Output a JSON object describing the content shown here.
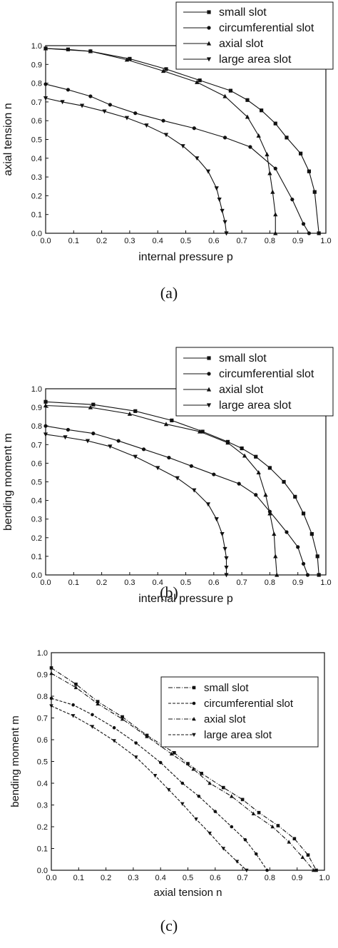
{
  "captions": [
    "(a)",
    "(b)",
    "(c)"
  ],
  "colors": {
    "ink": "#111111",
    "background": "#ffffff"
  },
  "chart_data": [
    {
      "type": "line",
      "xlabel": "internal pressure p",
      "ylabel": "axial tension n",
      "xlim": [
        0,
        1.0
      ],
      "ylim": [
        0,
        1.0
      ],
      "xticks": [
        "0.0",
        "0.1",
        "0.2",
        "0.3",
        "0.4",
        "0.5",
        "0.6",
        "0.7",
        "0.8",
        "0.9",
        "1.0"
      ],
      "yticks": [
        "0.0",
        "0.1",
        "0.2",
        "0.3",
        "0.4",
        "0.5",
        "0.6",
        "0.7",
        "0.8",
        "0.9",
        "1.0"
      ],
      "grid": false,
      "legend_position": "top-right",
      "series": [
        {
          "name": "small slot",
          "marker": "square",
          "x": [
            0.0,
            0.08,
            0.16,
            0.3,
            0.43,
            0.55,
            0.66,
            0.72,
            0.77,
            0.82,
            0.86,
            0.91,
            0.94,
            0.96,
            0.975
          ],
          "y": [
            0.985,
            0.98,
            0.97,
            0.93,
            0.875,
            0.815,
            0.76,
            0.71,
            0.655,
            0.585,
            0.51,
            0.425,
            0.33,
            0.22,
            0.0
          ]
        },
        {
          "name": "circumferential slot",
          "marker": "circle",
          "x": [
            0.0,
            0.08,
            0.16,
            0.23,
            0.32,
            0.42,
            0.53,
            0.64,
            0.73,
            0.82,
            0.88,
            0.92,
            0.94
          ],
          "y": [
            0.795,
            0.765,
            0.73,
            0.685,
            0.64,
            0.6,
            0.56,
            0.51,
            0.46,
            0.345,
            0.18,
            0.05,
            0.0
          ]
        },
        {
          "name": "axial slot",
          "marker": "triangle-up",
          "x": [
            0.0,
            0.16,
            0.29,
            0.42,
            0.54,
            0.64,
            0.72,
            0.76,
            0.79,
            0.8,
            0.81,
            0.82,
            0.82
          ],
          "y": [
            0.985,
            0.97,
            0.925,
            0.865,
            0.805,
            0.73,
            0.62,
            0.52,
            0.42,
            0.32,
            0.22,
            0.1,
            0.0
          ]
        },
        {
          "name": "large area slot",
          "marker": "triangle-down",
          "x": [
            0.0,
            0.06,
            0.13,
            0.21,
            0.29,
            0.36,
            0.43,
            0.49,
            0.54,
            0.58,
            0.61,
            0.62,
            0.63,
            0.64,
            0.645
          ],
          "y": [
            0.72,
            0.7,
            0.68,
            0.65,
            0.615,
            0.575,
            0.525,
            0.465,
            0.4,
            0.33,
            0.24,
            0.18,
            0.12,
            0.06,
            0.0
          ]
        }
      ]
    },
    {
      "type": "line",
      "xlabel": "internal pressure p",
      "ylabel": "bending moment m",
      "xlim": [
        0,
        1.0
      ],
      "ylim": [
        0,
        1.0
      ],
      "xticks": [
        "0.0",
        "0.1",
        "0.2",
        "0.3",
        "0.4",
        "0.5",
        "0.6",
        "0.7",
        "0.8",
        "0.9",
        "1.0"
      ],
      "yticks": [
        "0.0",
        "0.1",
        "0.2",
        "0.3",
        "0.4",
        "0.5",
        "0.6",
        "0.7",
        "0.8",
        "0.9",
        "1.0"
      ],
      "grid": false,
      "legend_position": "top-right",
      "series": [
        {
          "name": "small slot",
          "marker": "square",
          "x": [
            0.0,
            0.17,
            0.32,
            0.45,
            0.56,
            0.65,
            0.7,
            0.75,
            0.8,
            0.85,
            0.89,
            0.92,
            0.95,
            0.97,
            0.975
          ],
          "y": [
            0.93,
            0.915,
            0.88,
            0.83,
            0.77,
            0.715,
            0.68,
            0.635,
            0.575,
            0.5,
            0.42,
            0.33,
            0.22,
            0.1,
            0.0
          ]
        },
        {
          "name": "circumferential slot",
          "marker": "circle",
          "x": [
            0.0,
            0.08,
            0.17,
            0.26,
            0.35,
            0.44,
            0.52,
            0.6,
            0.69,
            0.75,
            0.8,
            0.86,
            0.9,
            0.92,
            0.935
          ],
          "y": [
            0.8,
            0.78,
            0.76,
            0.72,
            0.675,
            0.63,
            0.585,
            0.54,
            0.49,
            0.43,
            0.34,
            0.23,
            0.15,
            0.06,
            0.0
          ]
        },
        {
          "name": "axial slot",
          "marker": "triangle-up",
          "x": [
            0.0,
            0.16,
            0.3,
            0.43,
            0.55,
            0.65,
            0.71,
            0.76,
            0.785,
            0.8,
            0.815,
            0.82,
            0.825
          ],
          "y": [
            0.91,
            0.9,
            0.865,
            0.81,
            0.77,
            0.71,
            0.64,
            0.55,
            0.43,
            0.33,
            0.22,
            0.1,
            0.0
          ]
        },
        {
          "name": "large area slot",
          "marker": "triangle-down",
          "x": [
            0.0,
            0.07,
            0.15,
            0.23,
            0.32,
            0.4,
            0.47,
            0.53,
            0.58,
            0.61,
            0.63,
            0.64,
            0.645,
            0.645,
            0.645
          ],
          "y": [
            0.755,
            0.74,
            0.72,
            0.69,
            0.635,
            0.575,
            0.52,
            0.455,
            0.38,
            0.3,
            0.22,
            0.14,
            0.09,
            0.04,
            0.0
          ]
        }
      ]
    },
    {
      "type": "line",
      "xlabel": "axial tension n",
      "ylabel": "bending moment m",
      "xlim": [
        0,
        1.0
      ],
      "ylim": [
        0,
        1.0
      ],
      "xticks": [
        "0.0",
        "0.1",
        "0.2",
        "0.3",
        "0.4",
        "0.5",
        "0.6",
        "0.7",
        "0.8",
        "0.9",
        "1.0"
      ],
      "yticks": [
        "0.0",
        "0.1",
        "0.2",
        "0.3",
        "0.4",
        "0.5",
        "0.6",
        "0.7",
        "0.8",
        "0.9",
        "1.0"
      ],
      "grid": false,
      "legend_position": "top-right",
      "series": [
        {
          "name": "small slot",
          "marker": "square",
          "x": [
            0.0,
            0.09,
            0.17,
            0.26,
            0.35,
            0.45,
            0.5,
            0.55,
            0.63,
            0.7,
            0.76,
            0.83,
            0.89,
            0.94,
            0.97
          ],
          "y": [
            0.93,
            0.855,
            0.775,
            0.705,
            0.62,
            0.54,
            0.49,
            0.445,
            0.38,
            0.325,
            0.265,
            0.205,
            0.145,
            0.07,
            0.0
          ]
        },
        {
          "name": "circumferential slot",
          "marker": "circle",
          "x": [
            0.0,
            0.08,
            0.15,
            0.23,
            0.31,
            0.4,
            0.48,
            0.54,
            0.6,
            0.66,
            0.71,
            0.75,
            0.79
          ],
          "y": [
            0.79,
            0.76,
            0.715,
            0.655,
            0.585,
            0.495,
            0.4,
            0.34,
            0.27,
            0.2,
            0.14,
            0.075,
            0.0
          ]
        },
        {
          "name": "axial slot",
          "marker": "triangle-up",
          "x": [
            0.0,
            0.09,
            0.17,
            0.26,
            0.35,
            0.44,
            0.52,
            0.58,
            0.66,
            0.74,
            0.81,
            0.87,
            0.92,
            0.96
          ],
          "y": [
            0.905,
            0.84,
            0.765,
            0.695,
            0.615,
            0.535,
            0.465,
            0.4,
            0.34,
            0.26,
            0.2,
            0.13,
            0.06,
            0.0
          ]
        },
        {
          "name": "large area slot",
          "marker": "triangle-down",
          "x": [
            0.0,
            0.08,
            0.15,
            0.23,
            0.31,
            0.38,
            0.43,
            0.48,
            0.53,
            0.58,
            0.63,
            0.68,
            0.715
          ],
          "y": [
            0.755,
            0.71,
            0.66,
            0.595,
            0.52,
            0.435,
            0.37,
            0.305,
            0.235,
            0.17,
            0.1,
            0.04,
            0.0
          ]
        }
      ]
    }
  ]
}
